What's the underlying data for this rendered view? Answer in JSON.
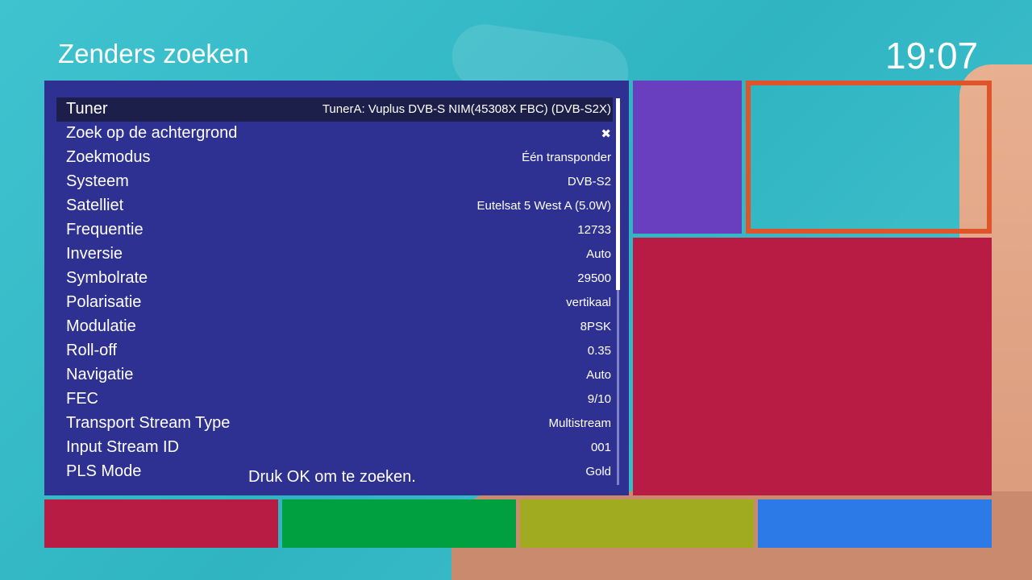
{
  "header": {
    "title": "Zenders zoeken",
    "clock": "19:07"
  },
  "settings": [
    {
      "label": "Tuner",
      "value": "TunerA: Vuplus DVB-S NIM(45308X FBC) (DVB-S2X)",
      "selected": true
    },
    {
      "label": "Zoek op de achtergrond",
      "value": "✖"
    },
    {
      "label": "Zoekmodus",
      "value": "Één transponder"
    },
    {
      "label": "Systeem",
      "value": "DVB-S2"
    },
    {
      "label": "Satelliet",
      "value": "Eutelsat 5 West A (5.0W)"
    },
    {
      "label": "Frequentie",
      "value": "12733"
    },
    {
      "label": "Inversie",
      "value": "Auto"
    },
    {
      "label": "Symbolrate",
      "value": "29500"
    },
    {
      "label": "Polarisatie",
      "value": "vertikaal"
    },
    {
      "label": "Modulatie",
      "value": "8PSK"
    },
    {
      "label": "Roll-off",
      "value": "0.35"
    },
    {
      "label": "Navigatie",
      "value": "Auto"
    },
    {
      "label": "FEC",
      "value": "9/10"
    },
    {
      "label": "Transport Stream Type",
      "value": "Multistream"
    },
    {
      "label": "Input Stream ID",
      "value": "001"
    },
    {
      "label": "PLS Mode",
      "value": "Gold"
    }
  ],
  "hint": "Druk OK om te zoeken.",
  "colors": {
    "panel": "#2e3192",
    "red": "#b81c45",
    "green": "#00a040",
    "yellow": "#a0ab1f",
    "blue": "#2b7ae8",
    "purple": "#6a3fbf",
    "orange": "#e0542a"
  }
}
